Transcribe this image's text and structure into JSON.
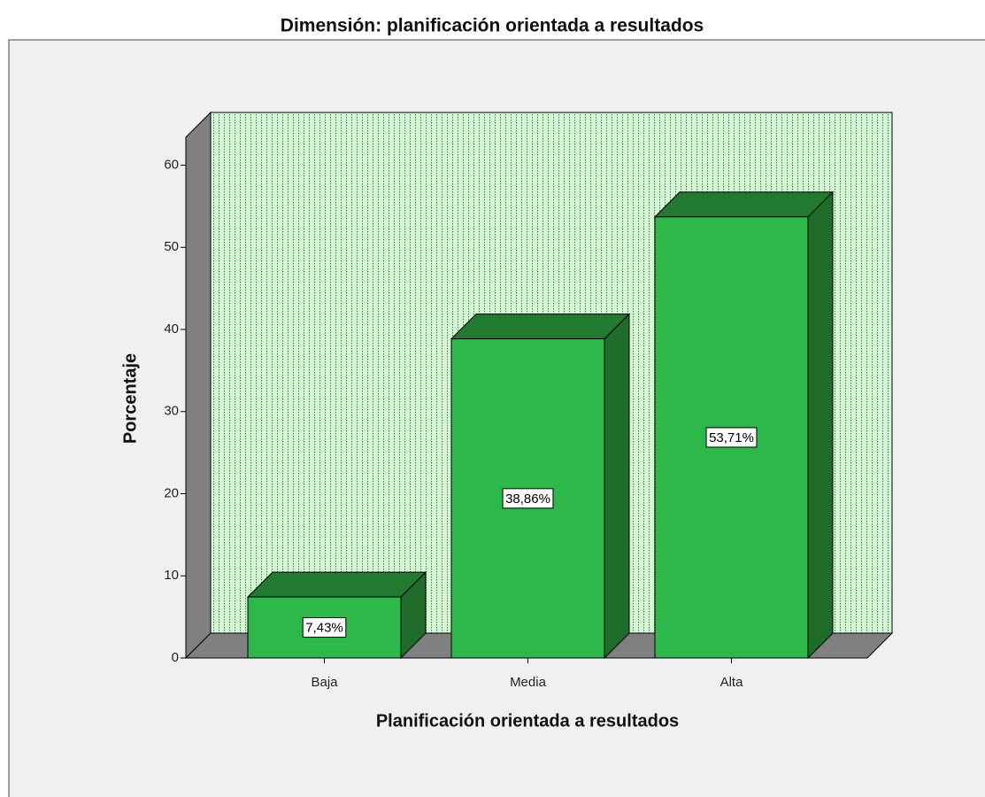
{
  "chart_data": {
    "type": "bar3d",
    "title": "Dimensión: planificación orientada a resultados",
    "xlabel": "Planificación orientada a resultados",
    "ylabel": "Porcentaje",
    "categories": [
      "Baja",
      "Media",
      "Alta"
    ],
    "values": [
      7.43,
      38.86,
      53.71
    ],
    "value_labels": [
      "7,43%",
      "38,86%",
      "53,71%"
    ],
    "color": "#2db84a",
    "ylim": [
      0,
      63.4
    ],
    "yticks": [
      0,
      10,
      20,
      30,
      40,
      50,
      60
    ],
    "grid": false
  }
}
